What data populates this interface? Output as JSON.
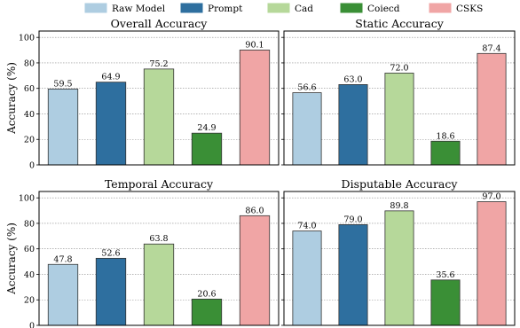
{
  "chart_data": {
    "type": "bar",
    "legend": {
      "placement": "top-center",
      "entries": [
        {
          "name": "Raw Model",
          "color": "#aecde1"
        },
        {
          "name": "Prompt",
          "color": "#2e6f9f"
        },
        {
          "name": "Cad",
          "color": "#b6d89a"
        },
        {
          "name": "Coiecd",
          "color": "#3a8f36"
        },
        {
          "name": "CSKS",
          "color": "#f0a5a5"
        }
      ]
    },
    "ylabel": "Accuracy (%)",
    "ylim": [
      0,
      105
    ],
    "yticks": [
      0,
      20,
      40,
      60,
      80,
      100
    ],
    "grid": "horizontal dotted",
    "panels": [
      {
        "title": "Overall Accuracy",
        "values": [
          59.5,
          64.9,
          75.2,
          24.9,
          90.1
        ]
      },
      {
        "title": "Static Accuracy",
        "values": [
          56.6,
          63.0,
          72.0,
          18.6,
          87.4
        ]
      },
      {
        "title": "Temporal Accuracy",
        "values": [
          47.8,
          52.6,
          63.8,
          20.6,
          86.0
        ]
      },
      {
        "title": "Disputable Accuracy",
        "values": [
          74.0,
          79.0,
          89.8,
          35.6,
          97.0
        ]
      }
    ]
  }
}
